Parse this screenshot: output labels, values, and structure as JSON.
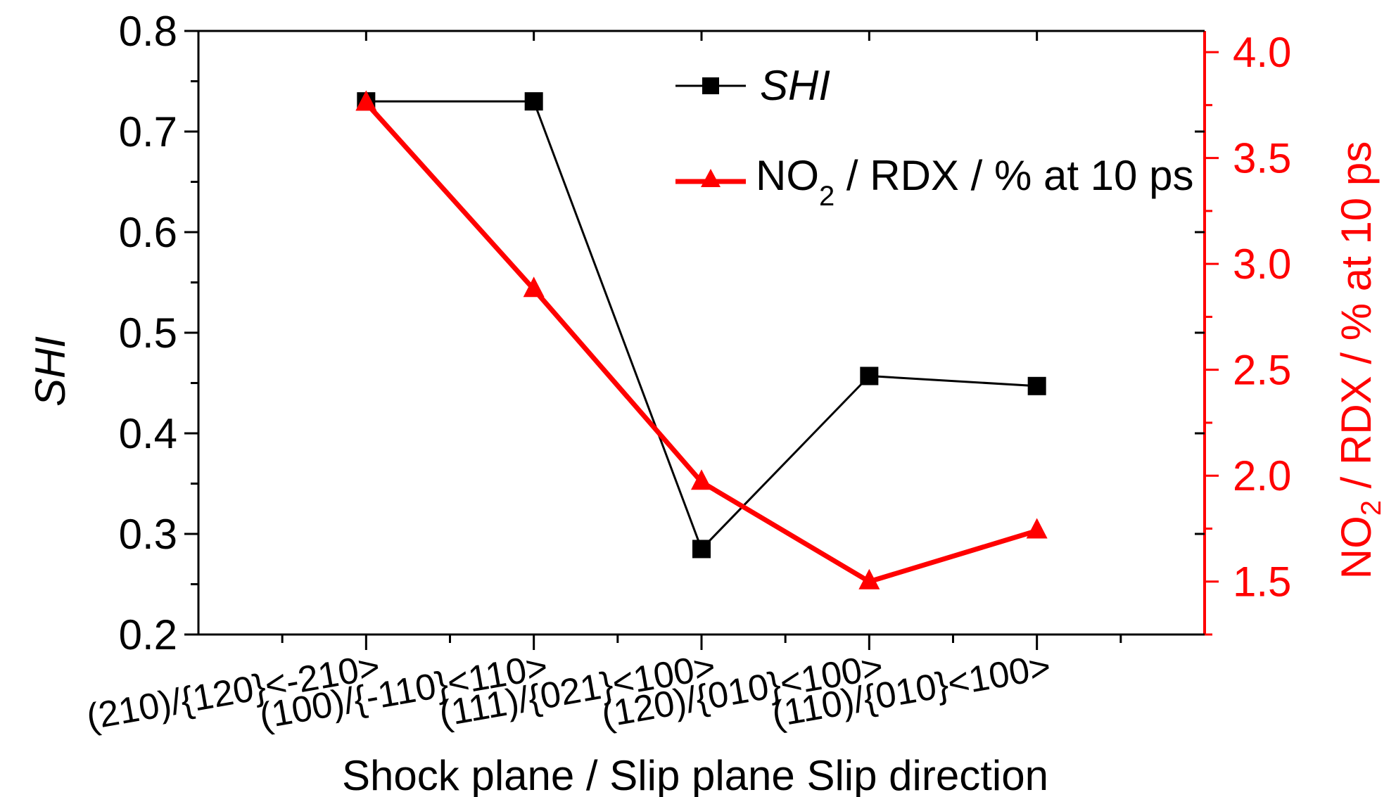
{
  "chart_data": {
    "type": "line",
    "categories": [
      "(210)/{120}<-210>",
      "(100)/{-110}<110>",
      "(111)/{021}<100>",
      "(120)/{010}<100>",
      "(110)/{010}<100>"
    ],
    "xlabel": "Shock plane / Slip plane Slip direction",
    "y_left": {
      "label": "SHI",
      "range": [
        0.2,
        0.8
      ],
      "major_step": 0.1,
      "ticks": [
        "0.2",
        "0.3",
        "0.4",
        "0.5",
        "0.6",
        "0.7",
        "0.8"
      ],
      "color": "#000000"
    },
    "y_right": {
      "label_main": "NO",
      "label_sub": "2",
      "label_rest": " / RDX / % at 10 ps",
      "range": [
        1.25,
        4.1
      ],
      "major_step": 0.5,
      "ticks": [
        "1.5",
        "2.0",
        "2.5",
        "3.0",
        "3.5",
        "4.0"
      ],
      "color": "#ff0000"
    },
    "series": [
      {
        "name": "SHI",
        "axis": "left",
        "marker": "square",
        "color": "#000000",
        "values": [
          0.73,
          0.73,
          0.285,
          0.457,
          0.447
        ]
      },
      {
        "name_main": "NO",
        "name_sub": "2",
        "name_rest": " / RDX / % at 10 ps",
        "axis": "right",
        "marker": "triangle",
        "color": "#ff0000",
        "values": [
          3.76,
          2.88,
          1.97,
          1.5,
          1.74
        ]
      }
    ],
    "legend": "top-center",
    "grid": false
  }
}
